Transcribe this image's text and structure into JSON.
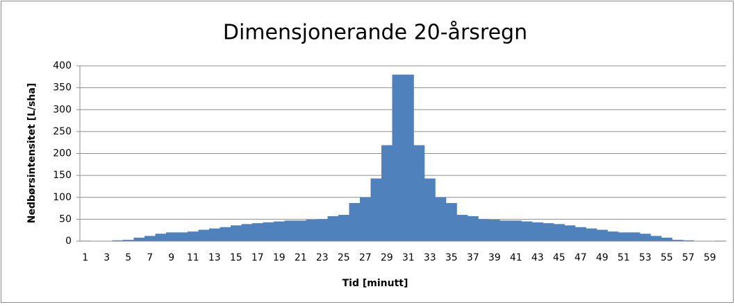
{
  "chart_data": {
    "type": "bar",
    "title": "Dimensjonerande 20-årsregn",
    "x_label": "Tid [minutt]",
    "y_label": "Nedbørsintensitet [L/sha]",
    "categories": [
      "1",
      null,
      "3",
      null,
      "5",
      null,
      "7",
      null,
      "9",
      null,
      "11",
      null,
      "13",
      null,
      "15",
      null,
      "17",
      null,
      "19",
      null,
      "21",
      null,
      "23",
      null,
      "25",
      null,
      "27",
      null,
      "29",
      null,
      "31",
      null,
      "33",
      null,
      "35",
      null,
      "37",
      null,
      "39",
      null,
      "41",
      null,
      "43",
      null,
      "45",
      null,
      "47",
      null,
      "49",
      null,
      "51",
      null,
      "53",
      null,
      "55",
      null,
      "57",
      null,
      "59",
      null
    ],
    "values": [
      1,
      0,
      0,
      2,
      3,
      8,
      12,
      17,
      20,
      20,
      22,
      26,
      29,
      32,
      36,
      39,
      41,
      43,
      45,
      47,
      47,
      49,
      50,
      57,
      60,
      87,
      100,
      143,
      219,
      380,
      380,
      219,
      143,
      100,
      87,
      60,
      57,
      50,
      49,
      47,
      47,
      45,
      43,
      41,
      39,
      36,
      32,
      29,
      26,
      22,
      20,
      20,
      17,
      12,
      8,
      3,
      2,
      0,
      0,
      1
    ],
    "color": "#4f81bd",
    "ylim": [
      0,
      400
    ],
    "yticks": [
      0,
      50,
      100,
      150,
      200,
      250,
      300,
      350,
      400
    ],
    "grid": true
  }
}
